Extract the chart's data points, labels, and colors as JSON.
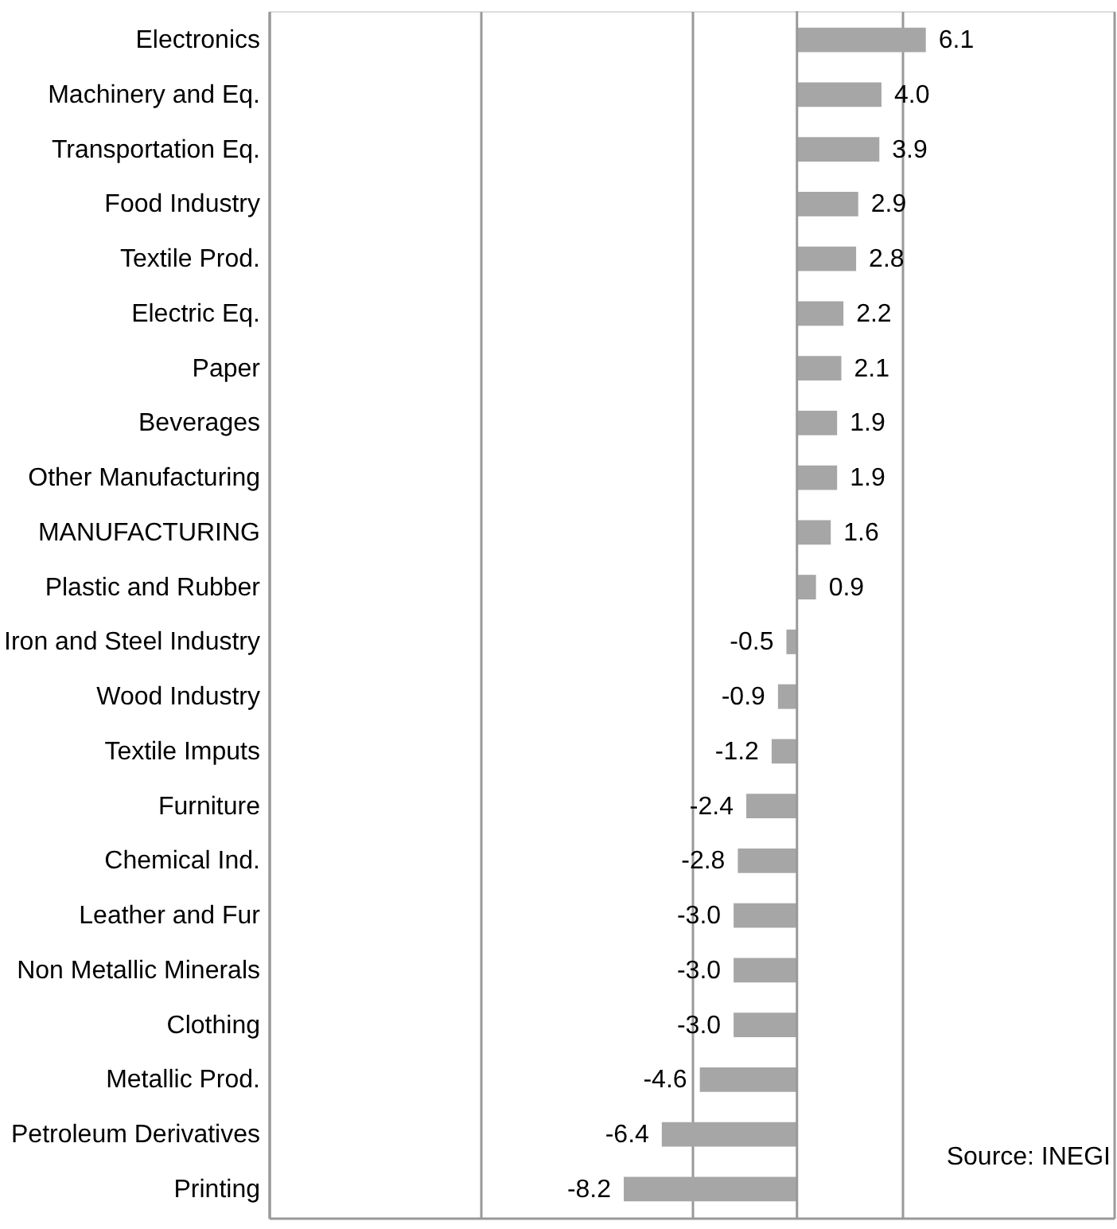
{
  "chart_data": {
    "type": "bar",
    "orientation": "horizontal",
    "categories": [
      "Electronics",
      "Machinery and Eq.",
      "Transportation Eq.",
      "Food Industry",
      "Textile Prod.",
      "Electric Eq.",
      "Paper",
      "Beverages",
      "Other Manufacturing",
      "MANUFACTURING",
      "Plastic and Rubber",
      "Iron and Steel Industry",
      "Wood Industry",
      "Textile Imputs",
      "Furniture",
      "Chemical Ind.",
      "Leather and Fur",
      "Non Metallic Minerals",
      "Clothing",
      "Metallic Prod.",
      "Petroleum Derivatives",
      "Printing"
    ],
    "values": [
      6.1,
      4.0,
      3.9,
      2.9,
      2.8,
      2.2,
      2.1,
      1.9,
      1.9,
      1.6,
      0.9,
      -0.5,
      -0.9,
      -1.2,
      -2.4,
      -2.8,
      -3.0,
      -3.0,
      -3.0,
      -4.6,
      -6.4,
      -8.2
    ],
    "value_labels": [
      "6.1",
      "4.0",
      "3.9",
      "2.9",
      "2.8",
      "2.2",
      "2.1",
      "1.9",
      "1.9",
      "1.6",
      "0.9",
      "-0.5",
      "-0.9",
      "-1.2",
      "-2.4",
      "-2.8",
      "-3.0",
      "-3.0",
      "-3.0",
      "-4.6",
      "-6.4",
      "-8.2"
    ],
    "color": "#a6a6a6",
    "xlim": [
      -25,
      15
    ],
    "xticks": [
      {
        "value": -25,
        "label": null
      },
      {
        "value": -15,
        "label": null
      },
      {
        "value": -5,
        "label": null
      },
      {
        "value": 5,
        "label": null
      },
      {
        "value": 15,
        "label": null
      }
    ],
    "tick_labels": "y",
    "grid": "x",
    "ref_lines": [
      {
        "axis": "x",
        "value": 0,
        "color": "#999999"
      }
    ],
    "annotations": [
      "Source: INEGI"
    ]
  }
}
